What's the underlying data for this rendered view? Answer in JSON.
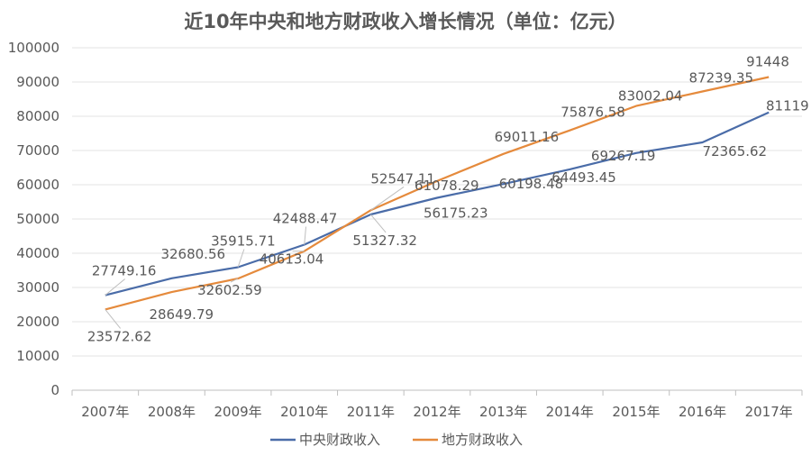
{
  "chart_data": {
    "type": "line",
    "title": "近10年中央和地方财政收入增长情况（单位：亿元）",
    "xlabel": "",
    "ylabel": "",
    "categories": [
      "2007年",
      "2008年",
      "2009年",
      "2010年",
      "2011年",
      "2012年",
      "2013年",
      "2014年",
      "2015年",
      "2016年",
      "2017年"
    ],
    "ylim": [
      0,
      100000
    ],
    "yticks": [
      "0",
      "10000",
      "20000",
      "30000",
      "40000",
      "50000",
      "60000",
      "70000",
      "80000",
      "90000",
      "100000"
    ],
    "grid": true,
    "legend_position": "bottom",
    "series": [
      {
        "name": "中央财政收入",
        "color": "#4a6ca8",
        "values": [
          27749.16,
          32680.56,
          35915.71,
          42488.47,
          51327.32,
          56175.23,
          60198.48,
          64493.45,
          69267.19,
          72365.62,
          81119
        ],
        "labels": [
          "27749.16",
          "32680.56",
          "35915.71",
          "42488.47",
          "51327.32",
          "56175.23",
          "60198.48",
          "64493.45",
          "69267.19",
          "72365.62",
          "81119"
        ]
      },
      {
        "name": "地方财政收入",
        "color": "#e58a3c",
        "values": [
          23572.62,
          28649.79,
          32602.59,
          40613.04,
          52547.11,
          61078.29,
          69011.16,
          75876.58,
          83002.04,
          87239.35,
          91448
        ],
        "labels": [
          "23572.62",
          "28649.79",
          "32602.59",
          "40613.04",
          "52547.11",
          "61078.29",
          "69011.16",
          "75876.58",
          "83002.04",
          "87239.35",
          "91448"
        ]
      }
    ]
  }
}
